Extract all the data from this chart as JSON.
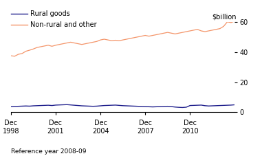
{
  "rural_goods": [
    3.8,
    3.9,
    4.0,
    4.1,
    4.2,
    4.1,
    4.3,
    4.4,
    4.5,
    4.6,
    4.7,
    4.5,
    4.8,
    4.9,
    5.0,
    5.1,
    4.9,
    4.7,
    4.5,
    4.3,
    4.2,
    4.1,
    4.0,
    4.1,
    4.3,
    4.5,
    4.6,
    4.7,
    4.8,
    4.6,
    4.4,
    4.3,
    4.2,
    4.1,
    4.0,
    3.9,
    3.8,
    3.7,
    3.6,
    3.7,
    3.8,
    3.9,
    4.0,
    3.8,
    3.5,
    3.3,
    3.2,
    3.4,
    4.5,
    4.6,
    4.7,
    4.8,
    4.4,
    4.2,
    4.3,
    4.4,
    4.5,
    4.6,
    4.7,
    4.8,
    5.0
  ],
  "non_rural": [
    37.5,
    37.2,
    38.5,
    39.0,
    40.5,
    41.2,
    42.0,
    43.0,
    43.5,
    44.0,
    44.5,
    43.8,
    44.5,
    45.0,
    45.5,
    46.0,
    46.5,
    46.0,
    45.5,
    45.0,
    45.5,
    46.0,
    46.5,
    47.0,
    48.0,
    48.5,
    48.0,
    47.5,
    47.8,
    47.5,
    48.0,
    48.5,
    49.0,
    49.5,
    50.0,
    50.5,
    51.0,
    50.5,
    51.0,
    51.5,
    52.0,
    52.5,
    53.0,
    52.5,
    52.0,
    52.5,
    53.0,
    53.5,
    54.0,
    54.5,
    55.0,
    54.0,
    53.5,
    54.0,
    54.5,
    55.0,
    55.5,
    57.0,
    60.0,
    59.5,
    60.5
  ],
  "legend_rural": "Rural goods",
  "legend_non_rural": "Non-rural and other",
  "color_rural": "#1f1f8c",
  "color_non_rural": "#f4956a",
  "ylabel": "$billion",
  "ylim": [
    0,
    60
  ],
  "yticks": [
    0,
    20,
    40,
    60
  ],
  "xtick_positions": [
    0,
    12,
    24,
    36,
    48
  ],
  "xtick_labels_dec": [
    "Dec",
    "Dec",
    "Dec",
    "Dec",
    "Dec"
  ],
  "xtick_labels_year": [
    "1998",
    "2001",
    "2004",
    "2007",
    "2010"
  ],
  "footer": "Reference year 2008-09",
  "background_color": "#ffffff"
}
